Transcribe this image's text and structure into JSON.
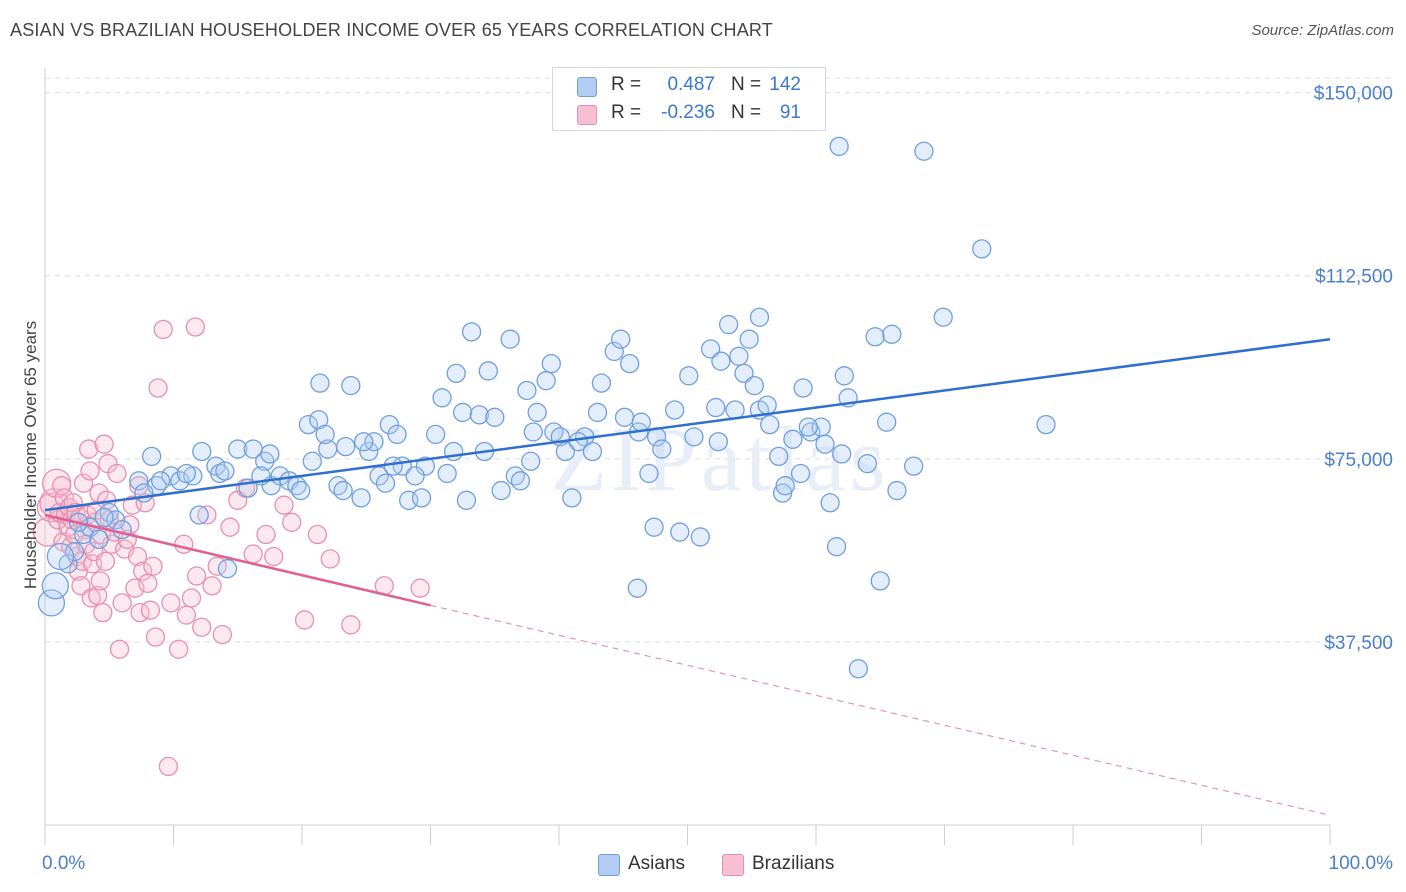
{
  "title": "ASIAN VS BRAZILIAN HOUSEHOLDER INCOME OVER 65 YEARS CORRELATION CHART",
  "source": "Source: ZipAtlas.com",
  "watermark": "ZIPatlas",
  "colors": {
    "asians": "#6f9fe0",
    "asians_fill": "#b3cdf2",
    "asians_line": "#2f6fd0",
    "brazilians": "#e88fb0",
    "brazilians_fill": "#f6c0d2",
    "brazilians_line": "#e0608f",
    "tick_text": "#4a7fd0"
  },
  "legend": {
    "rows": [
      {
        "r_label": "R =",
        "r_value": "0.487",
        "n_label": "N =",
        "n_value": "142"
      },
      {
        "r_label": "R =",
        "r_value": "-0.236",
        "n_label": "N =",
        "n_value": "91"
      }
    ]
  },
  "bottom_legend": {
    "asians": "Asians",
    "brazilians": "Brazilians"
  },
  "chart_data": {
    "type": "scatter",
    "title": "ASIAN VS BRAZILIAN HOUSEHOLDER INCOME OVER 65 YEARS CORRELATION CHART",
    "ylabel": "Householder Income Over 65 years",
    "xlabel": "",
    "x_tick_labels": [
      "0.0%",
      "100.0%"
    ],
    "y_tick_labels": [
      "$37,500",
      "$75,000",
      "$112,500",
      "$150,000"
    ],
    "y_ticks": [
      37500,
      75000,
      112500,
      150000
    ],
    "xlim": [
      0,
      100
    ],
    "ylim": [
      0,
      153000
    ],
    "grid": "horizontal dashed",
    "legend_position": "top-center",
    "series": [
      {
        "name": "Asians",
        "r": 0.487,
        "n": 142,
        "trend": {
          "x": [
            0,
            100
          ],
          "y": [
            64500,
            99500
          ]
        },
        "points": [
          [
            0.5,
            45500
          ],
          [
            0.8,
            49000
          ],
          [
            1.8,
            53500
          ],
          [
            2.3,
            56000
          ],
          [
            3,
            59500
          ],
          [
            3.5,
            61000
          ],
          [
            4.2,
            58500
          ],
          [
            5,
            64000
          ],
          [
            5.5,
            62500
          ],
          [
            6,
            60500
          ],
          [
            7.3,
            70500
          ],
          [
            8.7,
            69500
          ],
          [
            9.8,
            71500
          ],
          [
            10.5,
            70500
          ],
          [
            11.5,
            71500
          ],
          [
            12,
            63500
          ],
          [
            12.2,
            76500
          ],
          [
            13.3,
            73500
          ],
          [
            13.6,
            72000
          ],
          [
            14,
            72500
          ],
          [
            14.2,
            52500
          ],
          [
            15,
            77000
          ],
          [
            15.8,
            69000
          ],
          [
            16.2,
            77000
          ],
          [
            17.1,
            74500
          ],
          [
            17.5,
            76000
          ],
          [
            17.6,
            69500
          ],
          [
            18.3,
            71500
          ],
          [
            19,
            70500
          ],
          [
            19.6,
            69500
          ],
          [
            20.5,
            82000
          ],
          [
            20.8,
            74500
          ],
          [
            21.4,
            90500
          ],
          [
            22,
            77000
          ],
          [
            22.8,
            69500
          ],
          [
            23.2,
            68500
          ],
          [
            23.4,
            77500
          ],
          [
            23.8,
            90000
          ],
          [
            24.6,
            67000
          ],
          [
            25.2,
            76500
          ],
          [
            25.6,
            78500
          ],
          [
            26,
            71500
          ],
          [
            26.5,
            70000
          ],
          [
            26.8,
            82000
          ],
          [
            27.4,
            80000
          ],
          [
            27.8,
            73500
          ],
          [
            28.3,
            66500
          ],
          [
            29.3,
            67000
          ],
          [
            29.6,
            73500
          ],
          [
            30.4,
            80000
          ],
          [
            30.9,
            87500
          ],
          [
            31.3,
            72000
          ],
          [
            32,
            92500
          ],
          [
            32.5,
            84500
          ],
          [
            32.8,
            66500
          ],
          [
            33.2,
            101000
          ],
          [
            33.8,
            84000
          ],
          [
            34.2,
            76500
          ],
          [
            34.5,
            93000
          ],
          [
            35.5,
            68500
          ],
          [
            36.2,
            99500
          ],
          [
            36.6,
            71500
          ],
          [
            37,
            70500
          ],
          [
            37.5,
            89000
          ],
          [
            38,
            80500
          ],
          [
            38.3,
            84500
          ],
          [
            39,
            91000
          ],
          [
            39.4,
            94500
          ],
          [
            39.6,
            80500
          ],
          [
            40.1,
            79500
          ],
          [
            40.5,
            76500
          ],
          [
            41,
            67000
          ],
          [
            42,
            79500
          ],
          [
            42.6,
            76500
          ],
          [
            43.3,
            90500
          ],
          [
            44.3,
            97000
          ],
          [
            44.8,
            99500
          ],
          [
            45.1,
            83500
          ],
          [
            45.5,
            94500
          ],
          [
            46.2,
            80500
          ],
          [
            46.4,
            82500
          ],
          [
            47,
            72000
          ],
          [
            47.4,
            61000
          ],
          [
            47.6,
            79500
          ],
          [
            49,
            85000
          ],
          [
            49.4,
            60000
          ],
          [
            50.1,
            92000
          ],
          [
            50.5,
            79500
          ],
          [
            51,
            59000
          ],
          [
            51.8,
            97500
          ],
          [
            52.4,
            78500
          ],
          [
            52.6,
            95000
          ],
          [
            53.2,
            102500
          ],
          [
            53.7,
            85000
          ],
          [
            54,
            96000
          ],
          [
            54.4,
            92500
          ],
          [
            55.2,
            90000
          ],
          [
            55.6,
            104000
          ],
          [
            56.4,
            82000
          ],
          [
            57.1,
            75500
          ],
          [
            57.4,
            68000
          ],
          [
            57.6,
            69500
          ],
          [
            58.2,
            79000
          ],
          [
            58.8,
            72000
          ],
          [
            59,
            89500
          ],
          [
            59.6,
            80500
          ],
          [
            60.4,
            81500
          ],
          [
            61.1,
            66000
          ],
          [
            61.6,
            57000
          ],
          [
            62,
            76000
          ],
          [
            62.2,
            92000
          ],
          [
            62.5,
            87500
          ],
          [
            63.3,
            32000
          ],
          [
            64,
            74000
          ],
          [
            64.6,
            100000
          ],
          [
            65,
            50000
          ],
          [
            65.5,
            82500
          ],
          [
            65.9,
            100500
          ],
          [
            66.3,
            68500
          ],
          [
            69.9,
            104000
          ],
          [
            72.9,
            118000
          ],
          [
            77.9,
            82000
          ],
          [
            61.8,
            139000
          ],
          [
            68.4,
            138000
          ],
          [
            1.2,
            55000
          ],
          [
            2.6,
            62000
          ],
          [
            4.6,
            63000
          ],
          [
            7.7,
            68000
          ],
          [
            9,
            70500
          ],
          [
            11,
            72000
          ],
          [
            16.8,
            71500
          ],
          [
            19.9,
            68500
          ],
          [
            21.3,
            83000
          ],
          [
            24.8,
            78500
          ],
          [
            27.1,
            73500
          ],
          [
            28.8,
            71500
          ],
          [
            31.8,
            76500
          ],
          [
            35,
            83500
          ],
          [
            37.8,
            74500
          ],
          [
            41.5,
            78500
          ],
          [
            43,
            84500
          ],
          [
            48,
            77000
          ],
          [
            54.8,
            99500
          ],
          [
            55.6,
            85000
          ],
          [
            56.2,
            86000
          ],
          [
            60.7,
            78000
          ],
          [
            46.1,
            48500
          ],
          [
            59.4,
            81500
          ],
          [
            52.2,
            85500
          ],
          [
            67.6,
            73500
          ],
          [
            8.3,
            75500
          ],
          [
            21.8,
            80000
          ]
        ]
      },
      {
        "name": "Brazilians",
        "r": -0.236,
        "n": 91,
        "trend": {
          "x": [
            0,
            30
          ],
          "y": [
            63500,
            45000
          ]
        },
        "trend_dashed": {
          "x": [
            30,
            100
          ],
          "y": [
            45000,
            2000
          ]
        },
        "points": [
          [
            0.2,
            60000
          ],
          [
            0.5,
            65000
          ],
          [
            0.7,
            66000
          ],
          [
            0.9,
            70000
          ],
          [
            1,
            62500
          ],
          [
            1.1,
            64000
          ],
          [
            1.3,
            69500
          ],
          [
            1.4,
            58000
          ],
          [
            1.5,
            67000
          ],
          [
            1.6,
            63500
          ],
          [
            1.8,
            61000
          ],
          [
            1.9,
            65000
          ],
          [
            2,
            57000
          ],
          [
            2.1,
            62500
          ],
          [
            2.2,
            66000
          ],
          [
            2.3,
            59500
          ],
          [
            2.4,
            64000
          ],
          [
            2.5,
            55000
          ],
          [
            2.6,
            52000
          ],
          [
            2.7,
            63000
          ],
          [
            2.8,
            49000
          ],
          [
            2.9,
            54000
          ],
          [
            3,
            70000
          ],
          [
            3.1,
            60500
          ],
          [
            3.2,
            57500
          ],
          [
            3.3,
            63500
          ],
          [
            3.4,
            77000
          ],
          [
            3.5,
            72500
          ],
          [
            3.6,
            46500
          ],
          [
            3.7,
            53500
          ],
          [
            3.8,
            56000
          ],
          [
            3.9,
            62000
          ],
          [
            4,
            64500
          ],
          [
            4.1,
            47000
          ],
          [
            4.2,
            68000
          ],
          [
            4.3,
            50000
          ],
          [
            4.4,
            59500
          ],
          [
            4.5,
            43500
          ],
          [
            4.6,
            78000
          ],
          [
            4.7,
            54000
          ],
          [
            4.8,
            66500
          ],
          [
            4.9,
            74000
          ],
          [
            5,
            62500
          ],
          [
            5.2,
            57500
          ],
          [
            5.4,
            60000
          ],
          [
            5.6,
            72000
          ],
          [
            5.8,
            36000
          ],
          [
            6,
            45500
          ],
          [
            6.2,
            56500
          ],
          [
            6.4,
            58500
          ],
          [
            6.6,
            61500
          ],
          [
            6.8,
            65500
          ],
          [
            7,
            48500
          ],
          [
            7.2,
            55000
          ],
          [
            7.4,
            43500
          ],
          [
            7.6,
            52000
          ],
          [
            7.8,
            66000
          ],
          [
            8,
            49500
          ],
          [
            8.2,
            44000
          ],
          [
            8.4,
            53000
          ],
          [
            8.8,
            89500
          ],
          [
            9.2,
            101500
          ],
          [
            9.6,
            12000
          ],
          [
            9.8,
            45500
          ],
          [
            10.4,
            36000
          ],
          [
            10.8,
            57500
          ],
          [
            11,
            43000
          ],
          [
            11.4,
            46500
          ],
          [
            11.8,
            51000
          ],
          [
            12.2,
            40500
          ],
          [
            12.6,
            63500
          ],
          [
            13,
            49000
          ],
          [
            13.4,
            53000
          ],
          [
            13.8,
            39000
          ],
          [
            14.4,
            61000
          ],
          [
            15,
            66500
          ],
          [
            15.6,
            69000
          ],
          [
            16.2,
            55500
          ],
          [
            17.2,
            59500
          ],
          [
            17.8,
            55000
          ],
          [
            18.6,
            65500
          ],
          [
            19.2,
            62000
          ],
          [
            20.2,
            42000
          ],
          [
            21.2,
            59500
          ],
          [
            22.2,
            54500
          ],
          [
            23.8,
            41000
          ],
          [
            26.4,
            49000
          ],
          [
            29.2,
            48500
          ],
          [
            11.7,
            102000
          ],
          [
            7.3,
            69500
          ],
          [
            8.6,
            38500
          ]
        ]
      }
    ]
  }
}
